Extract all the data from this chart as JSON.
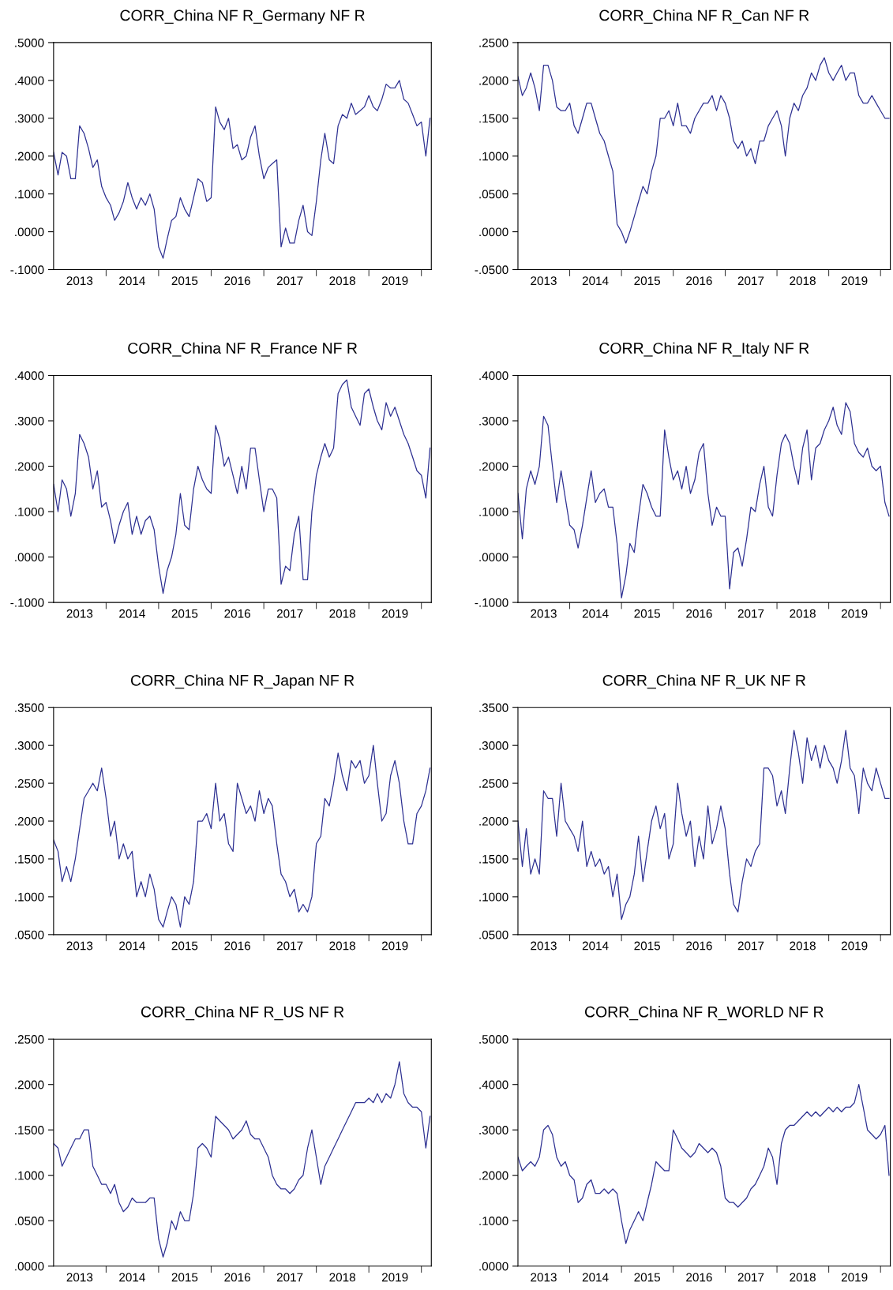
{
  "chart_data": [
    {
      "type": "line",
      "x": [
        "2013-01",
        "2013-02",
        "2013-03",
        "2013-04",
        "2013-05",
        "2013-06",
        "2013-07",
        "2013-08",
        "2013-09",
        "2013-10",
        "2013-11",
        "2013-12",
        "2014-01",
        "2014-02",
        "2014-03",
        "2014-04",
        "2014-05",
        "2014-06",
        "2014-07",
        "2014-08",
        "2014-09",
        "2014-10",
        "2014-11",
        "2014-12",
        "2015-01",
        "2015-02",
        "2015-03",
        "2015-04",
        "2015-05",
        "2015-06",
        "2015-07",
        "2015-08",
        "2015-09",
        "2015-10",
        "2015-11",
        "2015-12",
        "2016-01",
        "2016-02",
        "2016-03",
        "2016-04",
        "2016-05",
        "2016-06",
        "2016-07",
        "2016-08",
        "2016-09",
        "2016-10",
        "2016-11",
        "2016-12",
        "2017-01",
        "2017-02",
        "2017-03",
        "2017-04",
        "2017-05",
        "2017-06",
        "2017-07",
        "2017-08",
        "2017-09",
        "2017-10",
        "2017-11",
        "2017-12",
        "2018-01",
        "2018-02",
        "2018-03",
        "2018-04",
        "2018-05",
        "2018-06",
        "2018-07",
        "2018-08",
        "2018-09",
        "2018-10",
        "2018-11",
        "2018-12",
        "2019-01",
        "2019-02",
        "2019-03",
        "2019-04",
        "2019-05",
        "2019-06",
        "2019-07",
        "2019-08",
        "2019-09",
        "2019-10",
        "2019-11",
        "2019-12",
        "2020-01",
        "2020-02",
        "2020-03"
      ],
      "title": "CORR_China NF R_Germany NF R",
      "color": "#2e3192",
      "grid": false,
      "legend": false,
      "marker": "none",
      "line_style": "solid",
      "xlim": [
        "2013-01-01",
        "2020-03-10"
      ],
      "ylim": [
        -0.1,
        0.5
      ],
      "yticks": [
        {
          "value": -0.1,
          "label": "-.1000"
        },
        {
          "value": 0,
          "label": ".0000"
        },
        {
          "value": 0.1,
          "label": ".1000"
        },
        {
          "value": 0.2,
          "label": ".2000"
        },
        {
          "value": 0.3,
          "label": ".3000"
        },
        {
          "value": 0.4,
          "label": ".4000"
        },
        {
          "value": 0.5,
          "label": ".5000"
        }
      ],
      "xticks": [
        {
          "value": "2013-07-01",
          "label": "2013"
        },
        {
          "value": "2014-01-01",
          "label": null
        },
        {
          "value": "2014-07-01",
          "label": "2014"
        },
        {
          "value": "2015-01-01",
          "label": null
        },
        {
          "value": "2015-07-01",
          "label": "2015"
        },
        {
          "value": "2016-01-01",
          "label": null
        },
        {
          "value": "2016-07-01",
          "label": "2016"
        },
        {
          "value": "2017-01-01",
          "label": null
        },
        {
          "value": "2017-07-01",
          "label": "2017"
        },
        {
          "value": "2018-01-01",
          "label": null
        },
        {
          "value": "2018-07-01",
          "label": "2018"
        },
        {
          "value": "2019-01-01",
          "label": null
        },
        {
          "value": "2019-07-01",
          "label": "2019"
        },
        {
          "value": "2020-01-01",
          "label": null
        }
      ],
      "values": [
        0.21,
        0.15,
        0.21,
        0.2,
        0.14,
        0.14,
        0.28,
        0.26,
        0.22,
        0.17,
        0.19,
        0.12,
        0.09,
        0.07,
        0.03,
        0.05,
        0.08,
        0.13,
        0.09,
        0.06,
        0.09,
        0.07,
        0.1,
        0.06,
        -0.04,
        -0.07,
        -0.02,
        0.03,
        0.04,
        0.09,
        0.06,
        0.04,
        0.09,
        0.14,
        0.13,
        0.08,
        0.09,
        0.33,
        0.29,
        0.27,
        0.3,
        0.22,
        0.23,
        0.19,
        0.2,
        0.25,
        0.28,
        0.2,
        0.14,
        0.17,
        0.18,
        0.19,
        -0.04,
        0.01,
        -0.03,
        -0.03,
        0.03,
        0.07,
        0.0,
        -0.01,
        0.08,
        0.19,
        0.26,
        0.19,
        0.18,
        0.28,
        0.31,
        0.3,
        0.34,
        0.31,
        0.32,
        0.33,
        0.36,
        0.33,
        0.32,
        0.35,
        0.39,
        0.38,
        0.38,
        0.4,
        0.35,
        0.34,
        0.31,
        0.28,
        0.29,
        0.2,
        0.3
      ]
    },
    {
      "type": "line",
      "x": [
        "2013-01",
        "2013-02",
        "2013-03",
        "2013-04",
        "2013-05",
        "2013-06",
        "2013-07",
        "2013-08",
        "2013-09",
        "2013-10",
        "2013-11",
        "2013-12",
        "2014-01",
        "2014-02",
        "2014-03",
        "2014-04",
        "2014-05",
        "2014-06",
        "2014-07",
        "2014-08",
        "2014-09",
        "2014-10",
        "2014-11",
        "2014-12",
        "2015-01",
        "2015-02",
        "2015-03",
        "2015-04",
        "2015-05",
        "2015-06",
        "2015-07",
        "2015-08",
        "2015-09",
        "2015-10",
        "2015-11",
        "2015-12",
        "2016-01",
        "2016-02",
        "2016-03",
        "2016-04",
        "2016-05",
        "2016-06",
        "2016-07",
        "2016-08",
        "2016-09",
        "2016-10",
        "2016-11",
        "2016-12",
        "2017-01",
        "2017-02",
        "2017-03",
        "2017-04",
        "2017-05",
        "2017-06",
        "2017-07",
        "2017-08",
        "2017-09",
        "2017-10",
        "2017-11",
        "2017-12",
        "2018-01",
        "2018-02",
        "2018-03",
        "2018-04",
        "2018-05",
        "2018-06",
        "2018-07",
        "2018-08",
        "2018-09",
        "2018-10",
        "2018-11",
        "2018-12",
        "2019-01",
        "2019-02",
        "2019-03",
        "2019-04",
        "2019-05",
        "2019-06",
        "2019-07",
        "2019-08",
        "2019-09",
        "2019-10",
        "2019-11",
        "2019-12",
        "2020-01",
        "2020-02",
        "2020-03"
      ],
      "title": "CORR_China NF R_Can NF R",
      "color": "#2e3192",
      "grid": false,
      "legend": false,
      "marker": "none",
      "line_style": "solid",
      "xlim": [
        "2013-01-01",
        "2020-03-10"
      ],
      "ylim": [
        -0.05,
        0.25
      ],
      "yticks": [
        {
          "value": -0.05,
          "label": "-.0500"
        },
        {
          "value": 0,
          "label": ".0000"
        },
        {
          "value": 0.05,
          "label": ".0500"
        },
        {
          "value": 0.1,
          "label": ".1000"
        },
        {
          "value": 0.15,
          "label": ".1500"
        },
        {
          "value": 0.2,
          "label": ".2000"
        },
        {
          "value": 0.25,
          "label": ".2500"
        }
      ],
      "xticks": [
        {
          "value": "2013-07-01",
          "label": "2013"
        },
        {
          "value": "2014-01-01",
          "label": null
        },
        {
          "value": "2014-07-01",
          "label": "2014"
        },
        {
          "value": "2015-01-01",
          "label": null
        },
        {
          "value": "2015-07-01",
          "label": "2015"
        },
        {
          "value": "2016-01-01",
          "label": null
        },
        {
          "value": "2016-07-01",
          "label": "2016"
        },
        {
          "value": "2017-01-01",
          "label": null
        },
        {
          "value": "2017-07-01",
          "label": "2017"
        },
        {
          "value": "2018-01-01",
          "label": null
        },
        {
          "value": "2018-07-01",
          "label": "2018"
        },
        {
          "value": "2019-01-01",
          "label": null
        },
        {
          "value": "2019-07-01",
          "label": "2019"
        },
        {
          "value": "2020-01-01",
          "label": null
        }
      ],
      "values": [
        0.205,
        0.18,
        0.19,
        0.21,
        0.19,
        0.16,
        0.22,
        0.22,
        0.2,
        0.165,
        0.16,
        0.16,
        0.17,
        0.14,
        0.13,
        0.15,
        0.17,
        0.17,
        0.15,
        0.13,
        0.12,
        0.1,
        0.08,
        0.01,
        0.0,
        -0.015,
        0.0,
        0.02,
        0.04,
        0.06,
        0.05,
        0.08,
        0.1,
        0.15,
        0.15,
        0.16,
        0.14,
        0.17,
        0.14,
        0.14,
        0.13,
        0.15,
        0.16,
        0.17,
        0.17,
        0.18,
        0.16,
        0.18,
        0.17,
        0.15,
        0.12,
        0.11,
        0.12,
        0.1,
        0.11,
        0.09,
        0.12,
        0.12,
        0.14,
        0.15,
        0.16,
        0.14,
        0.1,
        0.15,
        0.17,
        0.16,
        0.18,
        0.19,
        0.21,
        0.2,
        0.22,
        0.23,
        0.21,
        0.2,
        0.21,
        0.22,
        0.2,
        0.21,
        0.21,
        0.18,
        0.17,
        0.17,
        0.18,
        0.17,
        0.16,
        0.15,
        0.15
      ]
    },
    {
      "type": "line",
      "x": [
        "2013-01",
        "2013-02",
        "2013-03",
        "2013-04",
        "2013-05",
        "2013-06",
        "2013-07",
        "2013-08",
        "2013-09",
        "2013-10",
        "2013-11",
        "2013-12",
        "2014-01",
        "2014-02",
        "2014-03",
        "2014-04",
        "2014-05",
        "2014-06",
        "2014-07",
        "2014-08",
        "2014-09",
        "2014-10",
        "2014-11",
        "2014-12",
        "2015-01",
        "2015-02",
        "2015-03",
        "2015-04",
        "2015-05",
        "2015-06",
        "2015-07",
        "2015-08",
        "2015-09",
        "2015-10",
        "2015-11",
        "2015-12",
        "2016-01",
        "2016-02",
        "2016-03",
        "2016-04",
        "2016-05",
        "2016-06",
        "2016-07",
        "2016-08",
        "2016-09",
        "2016-10",
        "2016-11",
        "2016-12",
        "2017-01",
        "2017-02",
        "2017-03",
        "2017-04",
        "2017-05",
        "2017-06",
        "2017-07",
        "2017-08",
        "2017-09",
        "2017-10",
        "2017-11",
        "2017-12",
        "2018-01",
        "2018-02",
        "2018-03",
        "2018-04",
        "2018-05",
        "2018-06",
        "2018-07",
        "2018-08",
        "2018-09",
        "2018-10",
        "2018-11",
        "2018-12",
        "2019-01",
        "2019-02",
        "2019-03",
        "2019-04",
        "2019-05",
        "2019-06",
        "2019-07",
        "2019-08",
        "2019-09",
        "2019-10",
        "2019-11",
        "2019-12",
        "2020-01",
        "2020-02",
        "2020-03"
      ],
      "title": "CORR_China NF R_France NF R",
      "color": "#2e3192",
      "grid": false,
      "legend": false,
      "marker": "none",
      "line_style": "solid",
      "xlim": [
        "2013-01-01",
        "2020-03-10"
      ],
      "ylim": [
        -0.1,
        0.4
      ],
      "yticks": [
        {
          "value": -0.1,
          "label": "-.1000"
        },
        {
          "value": 0,
          "label": ".0000"
        },
        {
          "value": 0.1,
          "label": ".1000"
        },
        {
          "value": 0.2,
          "label": ".2000"
        },
        {
          "value": 0.3,
          "label": ".3000"
        },
        {
          "value": 0.4,
          "label": ".4000"
        }
      ],
      "xticks": [
        {
          "value": "2013-07-01",
          "label": "2013"
        },
        {
          "value": "2014-01-01",
          "label": null
        },
        {
          "value": "2014-07-01",
          "label": "2014"
        },
        {
          "value": "2015-01-01",
          "label": null
        },
        {
          "value": "2015-07-01",
          "label": "2015"
        },
        {
          "value": "2016-01-01",
          "label": null
        },
        {
          "value": "2016-07-01",
          "label": "2016"
        },
        {
          "value": "2017-01-01",
          "label": null
        },
        {
          "value": "2017-07-01",
          "label": "2017"
        },
        {
          "value": "2018-01-01",
          "label": null
        },
        {
          "value": "2018-07-01",
          "label": "2018"
        },
        {
          "value": "2019-01-01",
          "label": null
        },
        {
          "value": "2019-07-01",
          "label": "2019"
        },
        {
          "value": "2020-01-01",
          "label": null
        }
      ],
      "values": [
        0.16,
        0.1,
        0.17,
        0.15,
        0.09,
        0.14,
        0.27,
        0.25,
        0.22,
        0.15,
        0.19,
        0.11,
        0.12,
        0.08,
        0.03,
        0.07,
        0.1,
        0.12,
        0.05,
        0.09,
        0.05,
        0.08,
        0.09,
        0.06,
        -0.02,
        -0.08,
        -0.03,
        0.0,
        0.05,
        0.14,
        0.07,
        0.06,
        0.15,
        0.2,
        0.17,
        0.15,
        0.14,
        0.29,
        0.26,
        0.2,
        0.22,
        0.18,
        0.14,
        0.2,
        0.15,
        0.24,
        0.24,
        0.17,
        0.1,
        0.15,
        0.15,
        0.13,
        -0.06,
        -0.02,
        -0.03,
        0.05,
        0.09,
        -0.05,
        -0.05,
        0.1,
        0.18,
        0.22,
        0.25,
        0.22,
        0.24,
        0.36,
        0.38,
        0.39,
        0.33,
        0.31,
        0.29,
        0.36,
        0.37,
        0.33,
        0.3,
        0.28,
        0.34,
        0.31,
        0.33,
        0.3,
        0.27,
        0.25,
        0.22,
        0.19,
        0.18,
        0.13,
        0.24
      ]
    },
    {
      "type": "line",
      "x": [
        "2013-01",
        "2013-02",
        "2013-03",
        "2013-04",
        "2013-05",
        "2013-06",
        "2013-07",
        "2013-08",
        "2013-09",
        "2013-10",
        "2013-11",
        "2013-12",
        "2014-01",
        "2014-02",
        "2014-03",
        "2014-04",
        "2014-05",
        "2014-06",
        "2014-07",
        "2014-08",
        "2014-09",
        "2014-10",
        "2014-11",
        "2014-12",
        "2015-01",
        "2015-02",
        "2015-03",
        "2015-04",
        "2015-05",
        "2015-06",
        "2015-07",
        "2015-08",
        "2015-09",
        "2015-10",
        "2015-11",
        "2015-12",
        "2016-01",
        "2016-02",
        "2016-03",
        "2016-04",
        "2016-05",
        "2016-06",
        "2016-07",
        "2016-08",
        "2016-09",
        "2016-10",
        "2016-11",
        "2016-12",
        "2017-01",
        "2017-02",
        "2017-03",
        "2017-04",
        "2017-05",
        "2017-06",
        "2017-07",
        "2017-08",
        "2017-09",
        "2017-10",
        "2017-11",
        "2017-12",
        "2018-01",
        "2018-02",
        "2018-03",
        "2018-04",
        "2018-05",
        "2018-06",
        "2018-07",
        "2018-08",
        "2018-09",
        "2018-10",
        "2018-11",
        "2018-12",
        "2019-01",
        "2019-02",
        "2019-03",
        "2019-04",
        "2019-05",
        "2019-06",
        "2019-07",
        "2019-08",
        "2019-09",
        "2019-10",
        "2019-11",
        "2019-12",
        "2020-01",
        "2020-02",
        "2020-03"
      ],
      "title": "CORR_China NF R_Italy NF R",
      "color": "#2e3192",
      "grid": false,
      "legend": false,
      "marker": "none",
      "line_style": "solid",
      "xlim": [
        "2013-01-01",
        "2020-03-10"
      ],
      "ylim": [
        -0.1,
        0.4
      ],
      "yticks": [
        {
          "value": -0.1,
          "label": "-.1000"
        },
        {
          "value": 0,
          "label": ".0000"
        },
        {
          "value": 0.1,
          "label": ".1000"
        },
        {
          "value": 0.2,
          "label": ".2000"
        },
        {
          "value": 0.3,
          "label": ".3000"
        },
        {
          "value": 0.4,
          "label": ".4000"
        }
      ],
      "xticks": [
        {
          "value": "2013-07-01",
          "label": "2013"
        },
        {
          "value": "2014-01-01",
          "label": null
        },
        {
          "value": "2014-07-01",
          "label": "2014"
        },
        {
          "value": "2015-01-01",
          "label": null
        },
        {
          "value": "2015-07-01",
          "label": "2015"
        },
        {
          "value": "2016-01-01",
          "label": null
        },
        {
          "value": "2016-07-01",
          "label": "2016"
        },
        {
          "value": "2017-01-01",
          "label": null
        },
        {
          "value": "2017-07-01",
          "label": "2017"
        },
        {
          "value": "2018-01-01",
          "label": null
        },
        {
          "value": "2018-07-01",
          "label": "2018"
        },
        {
          "value": "2019-01-01",
          "label": null
        },
        {
          "value": "2019-07-01",
          "label": "2019"
        },
        {
          "value": "2020-01-01",
          "label": null
        }
      ],
      "values": [
        0.14,
        0.04,
        0.15,
        0.19,
        0.16,
        0.2,
        0.31,
        0.29,
        0.2,
        0.12,
        0.19,
        0.13,
        0.07,
        0.06,
        0.02,
        0.07,
        0.13,
        0.19,
        0.12,
        0.14,
        0.15,
        0.11,
        0.11,
        0.03,
        -0.09,
        -0.04,
        0.03,
        0.01,
        0.09,
        0.16,
        0.14,
        0.11,
        0.09,
        0.09,
        0.28,
        0.22,
        0.17,
        0.19,
        0.15,
        0.2,
        0.14,
        0.17,
        0.23,
        0.25,
        0.14,
        0.07,
        0.11,
        0.09,
        0.09,
        -0.07,
        0.01,
        0.02,
        -0.02,
        0.04,
        0.11,
        0.1,
        0.16,
        0.2,
        0.11,
        0.09,
        0.18,
        0.25,
        0.27,
        0.25,
        0.2,
        0.16,
        0.24,
        0.28,
        0.17,
        0.24,
        0.25,
        0.28,
        0.3,
        0.33,
        0.29,
        0.27,
        0.34,
        0.32,
        0.25,
        0.23,
        0.22,
        0.24,
        0.2,
        0.19,
        0.2,
        0.12,
        0.09
      ]
    },
    {
      "type": "line",
      "x": [
        "2013-01",
        "2013-02",
        "2013-03",
        "2013-04",
        "2013-05",
        "2013-06",
        "2013-07",
        "2013-08",
        "2013-09",
        "2013-10",
        "2013-11",
        "2013-12",
        "2014-01",
        "2014-02",
        "2014-03",
        "2014-04",
        "2014-05",
        "2014-06",
        "2014-07",
        "2014-08",
        "2014-09",
        "2014-10",
        "2014-11",
        "2014-12",
        "2015-01",
        "2015-02",
        "2015-03",
        "2015-04",
        "2015-05",
        "2015-06",
        "2015-07",
        "2015-08",
        "2015-09",
        "2015-10",
        "2015-11",
        "2015-12",
        "2016-01",
        "2016-02",
        "2016-03",
        "2016-04",
        "2016-05",
        "2016-06",
        "2016-07",
        "2016-08",
        "2016-09",
        "2016-10",
        "2016-11",
        "2016-12",
        "2017-01",
        "2017-02",
        "2017-03",
        "2017-04",
        "2017-05",
        "2017-06",
        "2017-07",
        "2017-08",
        "2017-09",
        "2017-10",
        "2017-11",
        "2017-12",
        "2018-01",
        "2018-02",
        "2018-03",
        "2018-04",
        "2018-05",
        "2018-06",
        "2018-07",
        "2018-08",
        "2018-09",
        "2018-10",
        "2018-11",
        "2018-12",
        "2019-01",
        "2019-02",
        "2019-03",
        "2019-04",
        "2019-05",
        "2019-06",
        "2019-07",
        "2019-08",
        "2019-09",
        "2019-10",
        "2019-11",
        "2019-12",
        "2020-01",
        "2020-02",
        "2020-03"
      ],
      "title": "CORR_China NF R_Japan NF R",
      "color": "#2e3192",
      "grid": false,
      "legend": false,
      "marker": "none",
      "line_style": "solid",
      "xlim": [
        "2013-01-01",
        "2020-03-10"
      ],
      "ylim": [
        0.05,
        0.35
      ],
      "yticks": [
        {
          "value": 0.05,
          "label": ".0500"
        },
        {
          "value": 0.1,
          "label": ".1000"
        },
        {
          "value": 0.15,
          "label": ".1500"
        },
        {
          "value": 0.2,
          "label": ".2000"
        },
        {
          "value": 0.25,
          "label": ".2500"
        },
        {
          "value": 0.3,
          "label": ".3000"
        },
        {
          "value": 0.35,
          "label": ".3500"
        }
      ],
      "xticks": [
        {
          "value": "2013-07-01",
          "label": "2013"
        },
        {
          "value": "2014-01-01",
          "label": null
        },
        {
          "value": "2014-07-01",
          "label": "2014"
        },
        {
          "value": "2015-01-01",
          "label": null
        },
        {
          "value": "2015-07-01",
          "label": "2015"
        },
        {
          "value": "2016-01-01",
          "label": null
        },
        {
          "value": "2016-07-01",
          "label": "2016"
        },
        {
          "value": "2017-01-01",
          "label": null
        },
        {
          "value": "2017-07-01",
          "label": "2017"
        },
        {
          "value": "2018-01-01",
          "label": null
        },
        {
          "value": "2018-07-01",
          "label": "2018"
        },
        {
          "value": "2019-01-01",
          "label": null
        },
        {
          "value": "2019-07-01",
          "label": "2019"
        },
        {
          "value": "2020-01-01",
          "label": null
        }
      ],
      "values": [
        0.175,
        0.16,
        0.12,
        0.14,
        0.12,
        0.15,
        0.19,
        0.23,
        0.24,
        0.25,
        0.24,
        0.27,
        0.23,
        0.18,
        0.2,
        0.15,
        0.17,
        0.15,
        0.16,
        0.1,
        0.12,
        0.1,
        0.13,
        0.11,
        0.07,
        0.06,
        0.08,
        0.1,
        0.09,
        0.06,
        0.1,
        0.09,
        0.12,
        0.2,
        0.2,
        0.21,
        0.19,
        0.25,
        0.2,
        0.21,
        0.17,
        0.16,
        0.25,
        0.23,
        0.21,
        0.22,
        0.2,
        0.24,
        0.21,
        0.23,
        0.22,
        0.17,
        0.13,
        0.12,
        0.1,
        0.11,
        0.08,
        0.09,
        0.08,
        0.1,
        0.17,
        0.18,
        0.23,
        0.22,
        0.25,
        0.29,
        0.26,
        0.24,
        0.28,
        0.27,
        0.28,
        0.25,
        0.26,
        0.3,
        0.25,
        0.2,
        0.21,
        0.26,
        0.28,
        0.25,
        0.2,
        0.17,
        0.17,
        0.21,
        0.22,
        0.24,
        0.27
      ]
    },
    {
      "type": "line",
      "x": [
        "2013-01",
        "2013-02",
        "2013-03",
        "2013-04",
        "2013-05",
        "2013-06",
        "2013-07",
        "2013-08",
        "2013-09",
        "2013-10",
        "2013-11",
        "2013-12",
        "2014-01",
        "2014-02",
        "2014-03",
        "2014-04",
        "2014-05",
        "2014-06",
        "2014-07",
        "2014-08",
        "2014-09",
        "2014-10",
        "2014-11",
        "2014-12",
        "2015-01",
        "2015-02",
        "2015-03",
        "2015-04",
        "2015-05",
        "2015-06",
        "2015-07",
        "2015-08",
        "2015-09",
        "2015-10",
        "2015-11",
        "2015-12",
        "2016-01",
        "2016-02",
        "2016-03",
        "2016-04",
        "2016-05",
        "2016-06",
        "2016-07",
        "2016-08",
        "2016-09",
        "2016-10",
        "2016-11",
        "2016-12",
        "2017-01",
        "2017-02",
        "2017-03",
        "2017-04",
        "2017-05",
        "2017-06",
        "2017-07",
        "2017-08",
        "2017-09",
        "2017-10",
        "2017-11",
        "2017-12",
        "2018-01",
        "2018-02",
        "2018-03",
        "2018-04",
        "2018-05",
        "2018-06",
        "2018-07",
        "2018-08",
        "2018-09",
        "2018-10",
        "2018-11",
        "2018-12",
        "2019-01",
        "2019-02",
        "2019-03",
        "2019-04",
        "2019-05",
        "2019-06",
        "2019-07",
        "2019-08",
        "2019-09",
        "2019-10",
        "2019-11",
        "2019-12",
        "2020-01",
        "2020-02",
        "2020-03"
      ],
      "title": "CORR_China NF R_UK NF R",
      "color": "#2e3192",
      "grid": false,
      "legend": false,
      "marker": "none",
      "line_style": "solid",
      "xlim": [
        "2013-01-01",
        "2020-03-10"
      ],
      "ylim": [
        0.05,
        0.35
      ],
      "yticks": [
        {
          "value": 0.05,
          "label": ".0500"
        },
        {
          "value": 0.1,
          "label": ".1000"
        },
        {
          "value": 0.15,
          "label": ".1500"
        },
        {
          "value": 0.2,
          "label": ".2000"
        },
        {
          "value": 0.25,
          "label": ".2500"
        },
        {
          "value": 0.3,
          "label": ".3000"
        },
        {
          "value": 0.35,
          "label": ".3500"
        }
      ],
      "xticks": [
        {
          "value": "2013-07-01",
          "label": "2013"
        },
        {
          "value": "2014-01-01",
          "label": null
        },
        {
          "value": "2014-07-01",
          "label": "2014"
        },
        {
          "value": "2015-01-01",
          "label": null
        },
        {
          "value": "2015-07-01",
          "label": "2015"
        },
        {
          "value": "2016-01-01",
          "label": null
        },
        {
          "value": "2016-07-01",
          "label": "2016"
        },
        {
          "value": "2017-01-01",
          "label": null
        },
        {
          "value": "2017-07-01",
          "label": "2017"
        },
        {
          "value": "2018-01-01",
          "label": null
        },
        {
          "value": "2018-07-01",
          "label": "2018"
        },
        {
          "value": "2019-01-01",
          "label": null
        },
        {
          "value": "2019-07-01",
          "label": "2019"
        },
        {
          "value": "2020-01-01",
          "label": null
        }
      ],
      "values": [
        0.2,
        0.14,
        0.19,
        0.13,
        0.15,
        0.13,
        0.24,
        0.23,
        0.23,
        0.18,
        0.25,
        0.2,
        0.19,
        0.18,
        0.16,
        0.2,
        0.14,
        0.16,
        0.14,
        0.15,
        0.13,
        0.14,
        0.1,
        0.13,
        0.07,
        0.09,
        0.1,
        0.13,
        0.18,
        0.12,
        0.16,
        0.2,
        0.22,
        0.19,
        0.21,
        0.15,
        0.17,
        0.25,
        0.21,
        0.18,
        0.2,
        0.14,
        0.18,
        0.15,
        0.22,
        0.17,
        0.19,
        0.22,
        0.19,
        0.13,
        0.09,
        0.08,
        0.12,
        0.15,
        0.14,
        0.16,
        0.17,
        0.27,
        0.27,
        0.26,
        0.22,
        0.24,
        0.21,
        0.27,
        0.32,
        0.29,
        0.25,
        0.31,
        0.28,
        0.3,
        0.27,
        0.3,
        0.28,
        0.27,
        0.25,
        0.28,
        0.32,
        0.27,
        0.26,
        0.21,
        0.27,
        0.25,
        0.24,
        0.27,
        0.25,
        0.23,
        0.23
      ]
    },
    {
      "type": "line",
      "x": [
        "2013-01",
        "2013-02",
        "2013-03",
        "2013-04",
        "2013-05",
        "2013-06",
        "2013-07",
        "2013-08",
        "2013-09",
        "2013-10",
        "2013-11",
        "2013-12",
        "2014-01",
        "2014-02",
        "2014-03",
        "2014-04",
        "2014-05",
        "2014-06",
        "2014-07",
        "2014-08",
        "2014-09",
        "2014-10",
        "2014-11",
        "2014-12",
        "2015-01",
        "2015-02",
        "2015-03",
        "2015-04",
        "2015-05",
        "2015-06",
        "2015-07",
        "2015-08",
        "2015-09",
        "2015-10",
        "2015-11",
        "2015-12",
        "2016-01",
        "2016-02",
        "2016-03",
        "2016-04",
        "2016-05",
        "2016-06",
        "2016-07",
        "2016-08",
        "2016-09",
        "2016-10",
        "2016-11",
        "2016-12",
        "2017-01",
        "2017-02",
        "2017-03",
        "2017-04",
        "2017-05",
        "2017-06",
        "2017-07",
        "2017-08",
        "2017-09",
        "2017-10",
        "2017-11",
        "2017-12",
        "2018-01",
        "2018-02",
        "2018-03",
        "2018-04",
        "2018-05",
        "2018-06",
        "2018-07",
        "2018-08",
        "2018-09",
        "2018-10",
        "2018-11",
        "2018-12",
        "2019-01",
        "2019-02",
        "2019-03",
        "2019-04",
        "2019-05",
        "2019-06",
        "2019-07",
        "2019-08",
        "2019-09",
        "2019-10",
        "2019-11",
        "2019-12",
        "2020-01",
        "2020-02",
        "2020-03"
      ],
      "title": "CORR_China NF R_US NF R",
      "color": "#2e3192",
      "grid": false,
      "legend": false,
      "marker": "none",
      "line_style": "solid",
      "xlim": [
        "2013-01-01",
        "2020-03-10"
      ],
      "ylim": [
        0,
        0.25
      ],
      "yticks": [
        {
          "value": 0,
          "label": ".0000"
        },
        {
          "value": 0.05,
          "label": ".0500"
        },
        {
          "value": 0.1,
          "label": ".1000"
        },
        {
          "value": 0.15,
          "label": ".1500"
        },
        {
          "value": 0.2,
          "label": ".2000"
        },
        {
          "value": 0.25,
          "label": ".2500"
        }
      ],
      "xticks": [
        {
          "value": "2013-07-01",
          "label": "2013"
        },
        {
          "value": "2014-01-01",
          "label": null
        },
        {
          "value": "2014-07-01",
          "label": "2014"
        },
        {
          "value": "2015-01-01",
          "label": null
        },
        {
          "value": "2015-07-01",
          "label": "2015"
        },
        {
          "value": "2016-01-01",
          "label": null
        },
        {
          "value": "2016-07-01",
          "label": "2016"
        },
        {
          "value": "2017-01-01",
          "label": null
        },
        {
          "value": "2017-07-01",
          "label": "2017"
        },
        {
          "value": "2018-01-01",
          "label": null
        },
        {
          "value": "2018-07-01",
          "label": "2018"
        },
        {
          "value": "2019-01-01",
          "label": null
        },
        {
          "value": "2019-07-01",
          "label": "2019"
        },
        {
          "value": "2020-01-01",
          "label": null
        }
      ],
      "values": [
        0.135,
        0.13,
        0.11,
        0.12,
        0.13,
        0.14,
        0.14,
        0.15,
        0.15,
        0.11,
        0.1,
        0.09,
        0.09,
        0.08,
        0.09,
        0.07,
        0.06,
        0.065,
        0.075,
        0.07,
        0.07,
        0.07,
        0.075,
        0.075,
        0.03,
        0.01,
        0.025,
        0.05,
        0.04,
        0.06,
        0.05,
        0.05,
        0.08,
        0.13,
        0.135,
        0.13,
        0.12,
        0.165,
        0.16,
        0.155,
        0.15,
        0.14,
        0.145,
        0.15,
        0.16,
        0.145,
        0.14,
        0.14,
        0.13,
        0.12,
        0.1,
        0.09,
        0.085,
        0.085,
        0.08,
        0.085,
        0.095,
        0.1,
        0.13,
        0.15,
        0.12,
        0.09,
        0.11,
        0.12,
        0.13,
        0.14,
        0.15,
        0.16,
        0.17,
        0.18,
        0.18,
        0.18,
        0.185,
        0.18,
        0.19,
        0.18,
        0.19,
        0.185,
        0.2,
        0.225,
        0.19,
        0.18,
        0.175,
        0.175,
        0.17,
        0.13,
        0.165
      ]
    },
    {
      "type": "line",
      "x": [
        "2013-01",
        "2013-02",
        "2013-03",
        "2013-04",
        "2013-05",
        "2013-06",
        "2013-07",
        "2013-08",
        "2013-09",
        "2013-10",
        "2013-11",
        "2013-12",
        "2014-01",
        "2014-02",
        "2014-03",
        "2014-04",
        "2014-05",
        "2014-06",
        "2014-07",
        "2014-08",
        "2014-09",
        "2014-10",
        "2014-11",
        "2014-12",
        "2015-01",
        "2015-02",
        "2015-03",
        "2015-04",
        "2015-05",
        "2015-06",
        "2015-07",
        "2015-08",
        "2015-09",
        "2015-10",
        "2015-11",
        "2015-12",
        "2016-01",
        "2016-02",
        "2016-03",
        "2016-04",
        "2016-05",
        "2016-06",
        "2016-07",
        "2016-08",
        "2016-09",
        "2016-10",
        "2016-11",
        "2016-12",
        "2017-01",
        "2017-02",
        "2017-03",
        "2017-04",
        "2017-05",
        "2017-06",
        "2017-07",
        "2017-08",
        "2017-09",
        "2017-10",
        "2017-11",
        "2017-12",
        "2018-01",
        "2018-02",
        "2018-03",
        "2018-04",
        "2018-05",
        "2018-06",
        "2018-07",
        "2018-08",
        "2018-09",
        "2018-10",
        "2018-11",
        "2018-12",
        "2019-01",
        "2019-02",
        "2019-03",
        "2019-04",
        "2019-05",
        "2019-06",
        "2019-07",
        "2019-08",
        "2019-09",
        "2019-10",
        "2019-11",
        "2019-12",
        "2020-01",
        "2020-02",
        "2020-03"
      ],
      "title": "CORR_China NF R_WORLD NF R",
      "color": "#2e3192",
      "grid": false,
      "legend": false,
      "marker": "none",
      "line_style": "solid",
      "xlim": [
        "2013-01-01",
        "2020-03-10"
      ],
      "ylim": [
        0,
        0.5
      ],
      "yticks": [
        {
          "value": 0,
          "label": ".0000"
        },
        {
          "value": 0.1,
          "label": ".1000"
        },
        {
          "value": 0.2,
          "label": ".2000"
        },
        {
          "value": 0.3,
          "label": ".3000"
        },
        {
          "value": 0.4,
          "label": ".4000"
        },
        {
          "value": 0.5,
          "label": ".5000"
        }
      ],
      "xticks": [
        {
          "value": "2013-07-01",
          "label": "2013"
        },
        {
          "value": "2014-01-01",
          "label": null
        },
        {
          "value": "2014-07-01",
          "label": "2014"
        },
        {
          "value": "2015-01-01",
          "label": null
        },
        {
          "value": "2015-07-01",
          "label": "2015"
        },
        {
          "value": "2016-01-01",
          "label": null
        },
        {
          "value": "2016-07-01",
          "label": "2016"
        },
        {
          "value": "2017-01-01",
          "label": null
        },
        {
          "value": "2017-07-01",
          "label": "2017"
        },
        {
          "value": "2018-01-01",
          "label": null
        },
        {
          "value": "2018-07-01",
          "label": "2018"
        },
        {
          "value": "2019-01-01",
          "label": null
        },
        {
          "value": "2019-07-01",
          "label": "2019"
        },
        {
          "value": "2020-01-01",
          "label": null
        }
      ],
      "values": [
        0.24,
        0.21,
        0.22,
        0.23,
        0.22,
        0.24,
        0.3,
        0.31,
        0.29,
        0.24,
        0.22,
        0.23,
        0.2,
        0.19,
        0.14,
        0.15,
        0.18,
        0.19,
        0.16,
        0.16,
        0.17,
        0.16,
        0.17,
        0.16,
        0.1,
        0.05,
        0.08,
        0.1,
        0.12,
        0.1,
        0.14,
        0.18,
        0.23,
        0.22,
        0.21,
        0.21,
        0.3,
        0.28,
        0.26,
        0.25,
        0.24,
        0.25,
        0.27,
        0.26,
        0.25,
        0.26,
        0.25,
        0.22,
        0.15,
        0.14,
        0.14,
        0.13,
        0.14,
        0.15,
        0.17,
        0.18,
        0.2,
        0.22,
        0.26,
        0.24,
        0.18,
        0.27,
        0.3,
        0.31,
        0.31,
        0.32,
        0.33,
        0.34,
        0.33,
        0.34,
        0.33,
        0.34,
        0.35,
        0.34,
        0.35,
        0.34,
        0.35,
        0.35,
        0.36,
        0.4,
        0.35,
        0.3,
        0.29,
        0.28,
        0.29,
        0.31,
        0.2
      ]
    }
  ]
}
